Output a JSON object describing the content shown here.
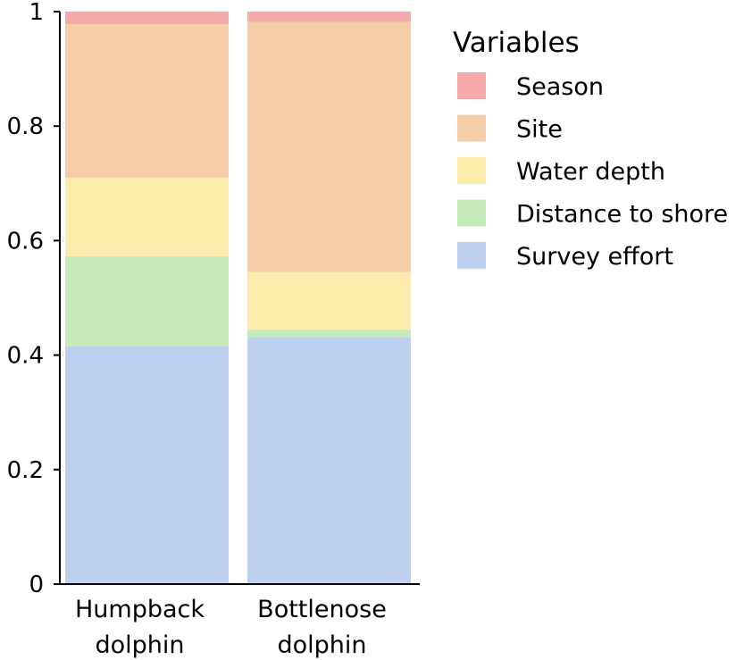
{
  "chart_data": {
    "type": "bar",
    "stacked": true,
    "categories": [
      [
        "Humpback",
        "dolphin"
      ],
      [
        "Bottlenose",
        "dolphin"
      ]
    ],
    "yticks": [
      "0",
      "0.2",
      "0.4",
      "0.6",
      "0.8",
      "1"
    ],
    "ylim": [
      0,
      1
    ],
    "legend_title": "Variables",
    "legend_position": "right",
    "series": [
      {
        "name": "Survey effort",
        "color": "#bdd0ee",
        "values": [
          0.415,
          0.432
        ]
      },
      {
        "name": "Distance to shore",
        "color": "#c5ebbb",
        "values": [
          0.158,
          0.013
        ]
      },
      {
        "name": "Water depth",
        "color": "#fcebaa",
        "values": [
          0.137,
          0.1
        ]
      },
      {
        "name": "Site",
        "color": "#f6cda9",
        "values": [
          0.268,
          0.437
        ]
      },
      {
        "name": "Season",
        "color": "#f6aaaa",
        "values": [
          0.022,
          0.018
        ]
      }
    ],
    "legend_order": [
      "Season",
      "Site",
      "Water depth",
      "Distance to shore",
      "Survey effort"
    ]
  }
}
